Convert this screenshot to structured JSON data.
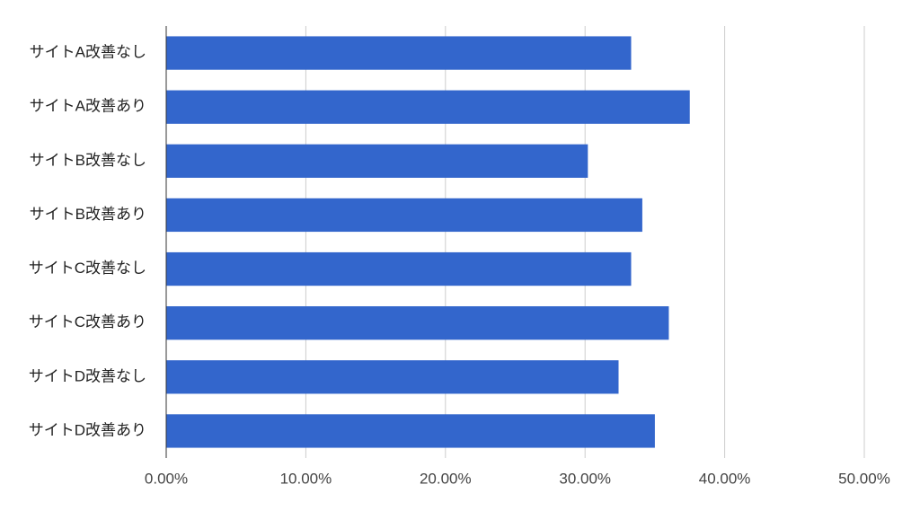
{
  "chart_data": {
    "type": "bar",
    "orientation": "horizontal",
    "categories": [
      "サイトA改善なし",
      "サイトA改善あり",
      "サイトB改善なし",
      "サイトB改善あり",
      "サイトC改善なし",
      "サイトC改善あり",
      "サイトD改善なし",
      "サイトD改善あり"
    ],
    "values": [
      33.3,
      37.5,
      30.2,
      34.1,
      33.3,
      36.0,
      32.4,
      35.0
    ],
    "color": "#3366cc",
    "xlim": [
      0,
      50
    ],
    "xticks": [
      {
        "value": 0,
        "label": "0.00%"
      },
      {
        "value": 10,
        "label": "10.00%"
      },
      {
        "value": 20,
        "label": "20.00%"
      },
      {
        "value": 30,
        "label": "30.00%"
      },
      {
        "value": 40,
        "label": "40.00%"
      },
      {
        "value": 50,
        "label": "50.00%"
      }
    ],
    "grid": true
  }
}
